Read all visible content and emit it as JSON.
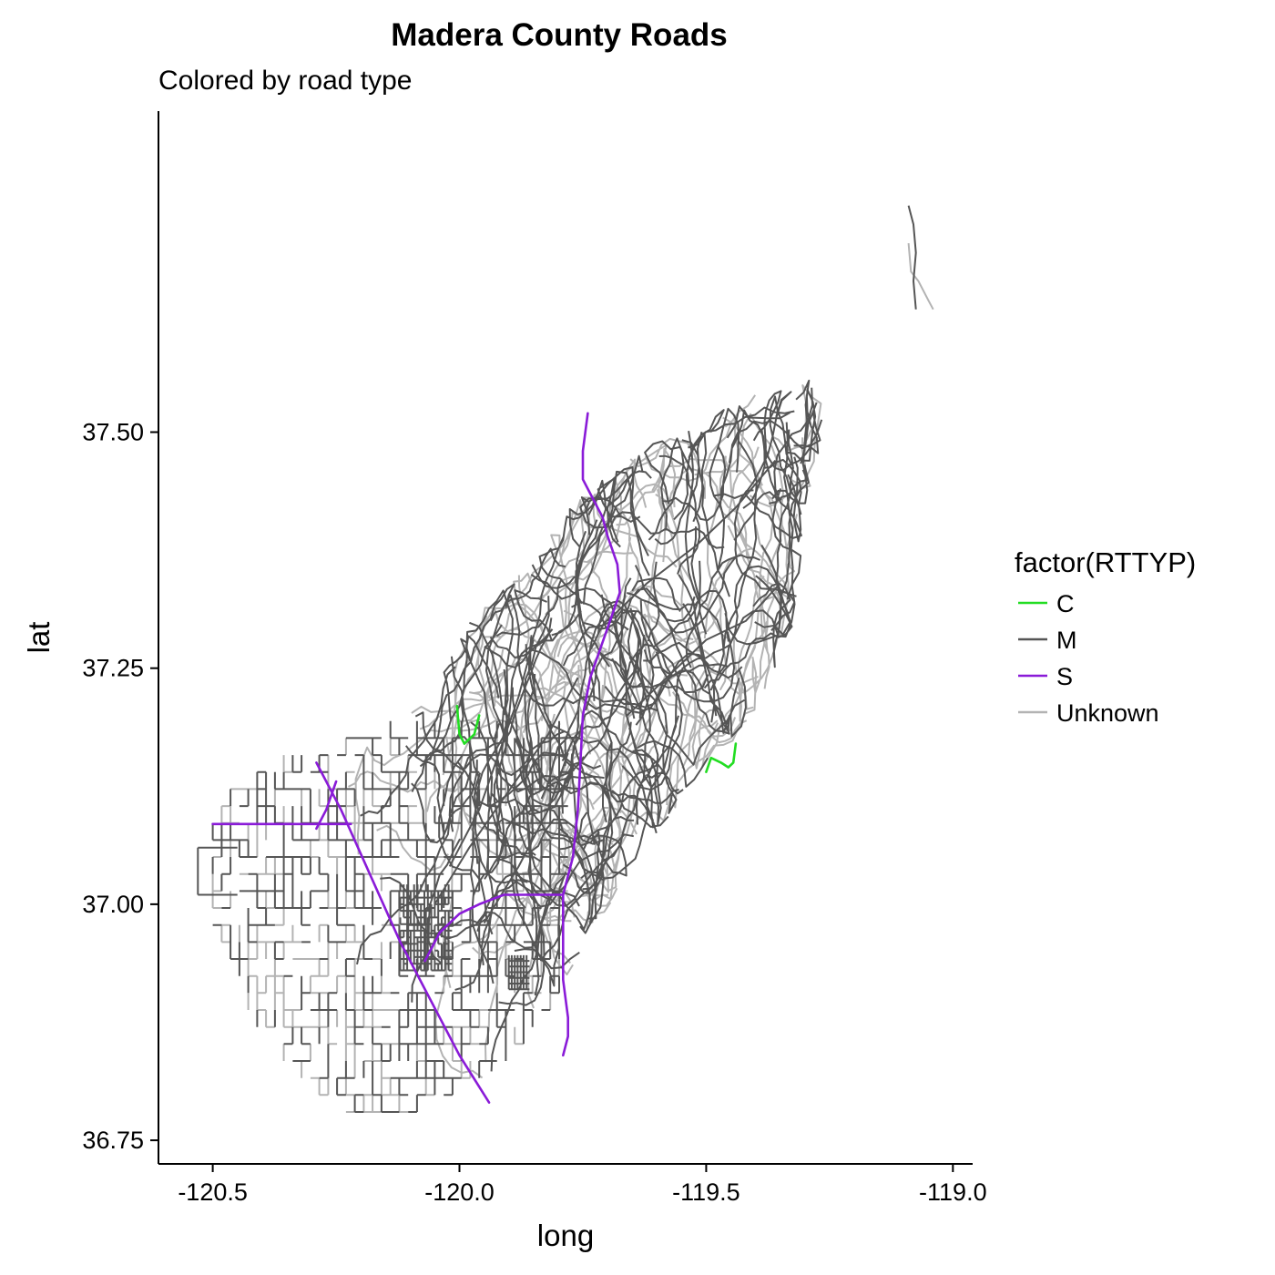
{
  "chart_data": {
    "type": "line",
    "title": "Madera County Roads",
    "subtitle": "Colored by road type",
    "xlabel": "long",
    "ylabel": "lat",
    "xlim": [
      -120.61,
      -118.96
    ],
    "ylim": [
      36.725,
      37.84
    ],
    "x_ticks": [
      -120.5,
      -120.0,
      -119.5,
      -119.0
    ],
    "x_tick_labels": [
      "-120.5",
      "-120.0",
      "-119.5",
      "-119.0"
    ],
    "y_ticks": [
      36.75,
      37.0,
      37.25,
      37.5
    ],
    "y_tick_labels": [
      "36.75",
      "37.00",
      "37.25",
      "37.50"
    ],
    "legend": {
      "title": "factor(RTTYP)",
      "position": "right",
      "entries": [
        {
          "label": "C",
          "color": "#22dd22"
        },
        {
          "label": "M",
          "color": "#555555"
        },
        {
          "label": "S",
          "color": "#8a1bd8"
        },
        {
          "label": "Unknown",
          "color": "#b3b3b3"
        }
      ]
    },
    "grid": false,
    "series": [
      {
        "name": "S",
        "color": "#8a1bd8",
        "lines": [
          {
            "x": [
              -120.29,
              -120.24,
              -120.18,
              -120.12,
              -120.06,
              -120.0,
              -119.94
            ],
            "y": [
              37.15,
              37.1,
              37.03,
              36.96,
              36.9,
              36.84,
              36.79
            ]
          },
          {
            "x": [
              -120.5,
              -120.22
            ],
            "y": [
              37.085,
              37.085
            ]
          },
          {
            "x": [
              -120.29,
              -120.27,
              -120.25
            ],
            "y": [
              37.08,
              37.1,
              37.13
            ]
          },
          {
            "x": [
              -120.07,
              -120.04,
              -120.0,
              -119.96,
              -119.91,
              -119.85,
              -119.79
            ],
            "y": [
              36.94,
              36.97,
              36.99,
              37.0,
              37.01,
              37.01,
              37.01
            ]
          },
          {
            "x": [
              -119.79,
              -119.79,
              -119.79,
              -119.78,
              -119.78,
              -119.79
            ],
            "y": [
              37.01,
              36.96,
              36.92,
              36.88,
              36.86,
              36.84
            ]
          },
          {
            "x": [
              -119.79,
              -119.77,
              -119.76,
              -119.755,
              -119.75,
              -119.735,
              -119.715,
              -119.695,
              -119.675
            ],
            "y": [
              37.01,
              37.05,
              37.1,
              37.15,
              37.2,
              37.24,
              37.27,
              37.3,
              37.33
            ]
          },
          {
            "x": [
              -119.675,
              -119.68,
              -119.7,
              -119.71,
              -119.73,
              -119.75,
              -119.75,
              -119.74
            ],
            "y": [
              37.33,
              37.36,
              37.39,
              37.41,
              37.43,
              37.45,
              37.48,
              37.52
            ]
          }
        ]
      },
      {
        "name": "C",
        "color": "#22dd22",
        "lines": [
          {
            "x": [
              -120.005,
              -120.0,
              -119.99,
              -119.98,
              -119.97,
              -119.96
            ],
            "y": [
              37.21,
              37.18,
              37.17,
              37.175,
              37.18,
              37.2
            ]
          },
          {
            "x": [
              -119.5,
              -119.49,
              -119.47,
              -119.455,
              -119.445,
              -119.44
            ],
            "y": [
              37.14,
              37.155,
              37.15,
              37.145,
              37.15,
              37.17
            ]
          }
        ]
      }
    ]
  }
}
